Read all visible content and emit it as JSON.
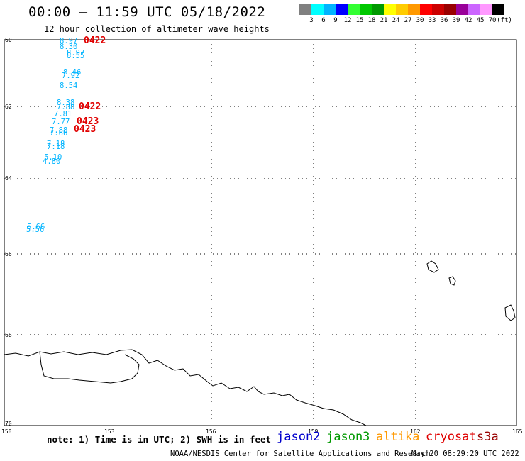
{
  "header": {
    "title": "00:00 – 11:59 UTC 05/18/2022",
    "subtitle": "12 hour collection of altimeter wave heights"
  },
  "colorbar": {
    "swatches": [
      "#808080",
      "#00ffff",
      "#00b4ff",
      "#0000ff",
      "#33ff33",
      "#00c800",
      "#009900",
      "#ffff00",
      "#ffcc00",
      "#ff9900",
      "#ff0000",
      "#cc0000",
      "#990000",
      "#990099",
      "#cc66ff",
      "#ff99ff",
      "#000000"
    ],
    "labels": [
      "3",
      "6",
      "9",
      "12",
      "15",
      "18",
      "21",
      "24",
      "27",
      "30",
      "33",
      "36",
      "39",
      "42",
      "45",
      "70",
      "(ft)"
    ]
  },
  "axes": {
    "lat_labels": [
      "60",
      "62",
      "64",
      "66",
      "68",
      "70"
    ],
    "lon_labels": [
      "150",
      "153",
      "156",
      "159",
      "162",
      "165"
    ]
  },
  "wave_heights": {
    "color": "#00b4ff",
    "values": [
      "8.97",
      "8.30",
      "8.97",
      "8.55",
      "8.46",
      "7.92",
      "8.54",
      "8.38",
      "7.88",
      "7.81",
      "7.77",
      "7.88",
      "7.66",
      "7.18",
      "7.18",
      "5.10",
      "4.80",
      "5.66",
      "5.56"
    ]
  },
  "time_labels": {
    "color": "#e00000",
    "values": [
      "0422",
      "0422",
      "0423",
      "0423"
    ]
  },
  "satellites": [
    {
      "name": "jason2",
      "color": "#0000cc"
    },
    {
      "name": "jason3",
      "color": "#009900"
    },
    {
      "name": "altika",
      "color": "#ff9900"
    },
    {
      "name": "cryosat",
      "color": "#e00000"
    },
    {
      "name": "s3a",
      "color": "#990000"
    }
  ],
  "footer": {
    "note": "note: 1) Time is in UTC; 2) SWH is in feet",
    "credit": "NOAA/NESDIS Center for Satellite Applications and Research",
    "timestamp": "May 20 08:29:20 UTC 2022"
  }
}
